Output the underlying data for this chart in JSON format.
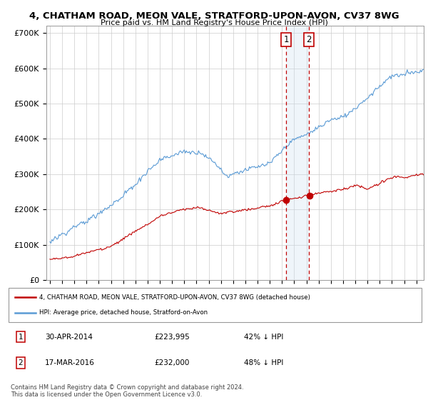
{
  "title": "4, CHATHAM ROAD, MEON VALE, STRATFORD-UPON-AVON, CV37 8WG",
  "subtitle": "Price paid vs. HM Land Registry's House Price Index (HPI)",
  "ylabel_ticks": [
    "£0",
    "£100K",
    "£200K",
    "£300K",
    "£400K",
    "£500K",
    "£600K",
    "£700K"
  ],
  "ytick_vals": [
    0,
    100000,
    200000,
    300000,
    400000,
    500000,
    600000,
    700000
  ],
  "ylim": [
    0,
    720000
  ],
  "hpi_color": "#5b9bd5",
  "price_color": "#c00000",
  "vline_color": "#c00000",
  "vshade_color": "#cce0f0",
  "purchase1_year": 2014.33,
  "purchase2_year": 2016.21,
  "purchase1_price": 223995,
  "purchase2_price": 232000,
  "legend_label1": "4, CHATHAM ROAD, MEON VALE, STRATFORD-UPON-AVON, CV37 8WG (detached house)",
  "legend_label2": "HPI: Average price, detached house, Stratford-on-Avon",
  "table_row1_num": "1",
  "table_row1_date": "30-APR-2014",
  "table_row1_price": "£223,995",
  "table_row1_hpi": "42% ↓ HPI",
  "table_row2_num": "2",
  "table_row2_date": "17-MAR-2016",
  "table_row2_price": "£232,000",
  "table_row2_hpi": "48% ↓ HPI",
  "footer": "Contains HM Land Registry data © Crown copyright and database right 2024.\nThis data is licensed under the Open Government Licence v3.0.",
  "bg_color": "#ffffff",
  "grid_color": "#cccccc"
}
